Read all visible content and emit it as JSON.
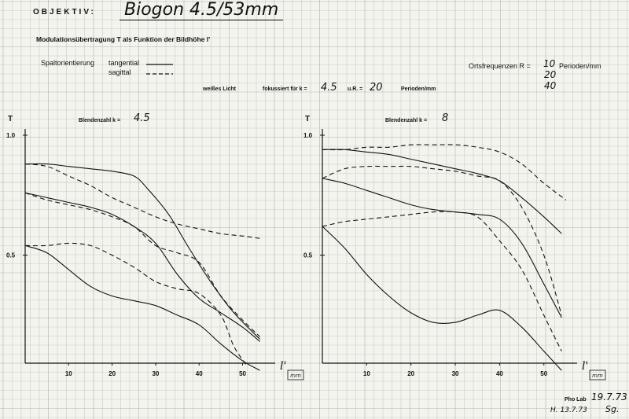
{
  "header": {
    "objektiv_label": "OBJEKTIV:",
    "lens_name": "Biogon 4.5/53mm",
    "subtitle": "Modulationsübertragung  T  als Funktion der Bildhöhe  l'",
    "legend_label": "Spaltorientierung",
    "legend_tangential": "tangential",
    "legend_sagittal": "sagittal",
    "freq_label": "Ortsfrequenzen R =",
    "freq_values": [
      "10",
      "20",
      "40"
    ],
    "freq_unit": "Perioden/mm",
    "focus_light": "weißes Licht",
    "focus_label": "fokussiert für k =",
    "focus_k": "4.5",
    "focus_ur": "u.R. =",
    "focus_r": "20",
    "focus_unit": "Perioden/mm"
  },
  "footer": {
    "lab": "Pho Lab",
    "date1": "19.7.73",
    "date2": "H. 13.7.73",
    "signature": "Sg."
  },
  "colors": {
    "paper": "#f4f4ef",
    "grid": "#c9ccc4",
    "grid_major": "#aeb2a8",
    "ink": "#111111"
  },
  "chart_data": [
    {
      "type": "line",
      "title": "Blendenzahl k = 4.5",
      "title_prefix": "Blendenzahl k =",
      "title_value": "4.5",
      "ylabel": "T",
      "xlabel": "l'",
      "xunit": "mm",
      "xlim": [
        0,
        55
      ],
      "ylim": [
        0,
        1.0
      ],
      "xticks": [
        10,
        20,
        30,
        40,
        50
      ],
      "yticks": [
        0.5,
        1.0
      ],
      "ytick_labels": [
        "0.5",
        "1.0"
      ],
      "series": [
        {
          "style": "solid",
          "x": [
            0,
            5,
            10,
            15,
            20,
            25,
            28,
            33,
            38,
            43,
            48,
            54
          ],
          "y": [
            0.88,
            0.88,
            0.87,
            0.86,
            0.85,
            0.83,
            0.78,
            0.67,
            0.52,
            0.38,
            0.26,
            0.15
          ]
        },
        {
          "style": "dashed",
          "x": [
            0,
            5,
            10,
            15,
            20,
            25,
            30,
            35,
            40,
            45,
            50,
            54
          ],
          "y": [
            0.88,
            0.87,
            0.83,
            0.79,
            0.74,
            0.7,
            0.66,
            0.63,
            0.61,
            0.59,
            0.58,
            0.57
          ]
        },
        {
          "style": "solid",
          "x": [
            0,
            5,
            10,
            15,
            20,
            25,
            30,
            35,
            40,
            45,
            50,
            54
          ],
          "y": [
            0.76,
            0.74,
            0.72,
            0.7,
            0.67,
            0.62,
            0.55,
            0.42,
            0.32,
            0.26,
            0.2,
            0.14
          ]
        },
        {
          "style": "dashed",
          "x": [
            0,
            5,
            10,
            15,
            20,
            25,
            30,
            35,
            40,
            45,
            50,
            54
          ],
          "y": [
            0.76,
            0.73,
            0.71,
            0.69,
            0.66,
            0.62,
            0.54,
            0.51,
            0.47,
            0.33,
            0.23,
            0.16
          ]
        },
        {
          "style": "solid",
          "x": [
            0,
            5,
            10,
            15,
            20,
            25,
            30,
            35,
            40,
            45,
            50,
            54
          ],
          "y": [
            0.54,
            0.51,
            0.44,
            0.37,
            0.33,
            0.31,
            0.29,
            0.25,
            0.21,
            0.13,
            0.06,
            0.02
          ]
        },
        {
          "style": "dashed",
          "x": [
            0,
            5,
            10,
            15,
            20,
            25,
            30,
            35,
            40,
            45,
            48,
            51
          ],
          "y": [
            0.54,
            0.54,
            0.55,
            0.54,
            0.5,
            0.45,
            0.39,
            0.36,
            0.34,
            0.25,
            0.12,
            0.04
          ]
        }
      ]
    },
    {
      "type": "line",
      "title": "Blendenzahl k = 8",
      "title_prefix": "Blendenzahl k =",
      "title_value": "8",
      "ylabel": "T",
      "xlabel": "l'",
      "xunit": "mm",
      "xlim": [
        0,
        55
      ],
      "ylim": [
        0,
        1.0
      ],
      "xticks": [
        10,
        20,
        30,
        40,
        50
      ],
      "yticks": [
        0.5,
        1.0
      ],
      "ytick_labels": [
        "0.5",
        "1.0"
      ],
      "series": [
        {
          "style": "solid",
          "x": [
            0,
            5,
            10,
            15,
            20,
            25,
            30,
            35,
            40,
            45,
            50,
            54
          ],
          "y": [
            0.94,
            0.94,
            0.93,
            0.92,
            0.9,
            0.88,
            0.86,
            0.84,
            0.81,
            0.74,
            0.66,
            0.59
          ]
        },
        {
          "style": "dashed",
          "x": [
            0,
            5,
            10,
            15,
            20,
            25,
            30,
            35,
            40,
            45,
            50,
            55
          ],
          "y": [
            0.94,
            0.94,
            0.95,
            0.95,
            0.96,
            0.96,
            0.96,
            0.95,
            0.93,
            0.88,
            0.8,
            0.73
          ]
        },
        {
          "style": "solid",
          "x": [
            0,
            5,
            10,
            15,
            20,
            25,
            30,
            35,
            40,
            45,
            50,
            54
          ],
          "y": [
            0.82,
            0.8,
            0.77,
            0.74,
            0.71,
            0.69,
            0.68,
            0.67,
            0.65,
            0.55,
            0.38,
            0.24
          ]
        },
        {
          "style": "dashed",
          "x": [
            0,
            5,
            10,
            15,
            20,
            25,
            30,
            35,
            40,
            45,
            50,
            54
          ],
          "y": [
            0.82,
            0.86,
            0.87,
            0.87,
            0.87,
            0.86,
            0.85,
            0.83,
            0.81,
            0.7,
            0.5,
            0.25
          ]
        },
        {
          "style": "solid",
          "x": [
            0,
            5,
            10,
            15,
            20,
            25,
            30,
            35,
            40,
            45,
            50,
            54
          ],
          "y": [
            0.62,
            0.53,
            0.42,
            0.33,
            0.26,
            0.22,
            0.22,
            0.25,
            0.27,
            0.2,
            0.1,
            0.02
          ]
        },
        {
          "style": "dashed",
          "x": [
            0,
            5,
            10,
            15,
            20,
            25,
            30,
            35,
            40,
            45,
            50,
            54
          ],
          "y": [
            0.62,
            0.64,
            0.65,
            0.66,
            0.67,
            0.68,
            0.68,
            0.66,
            0.56,
            0.44,
            0.25,
            0.1
          ]
        }
      ]
    }
  ]
}
